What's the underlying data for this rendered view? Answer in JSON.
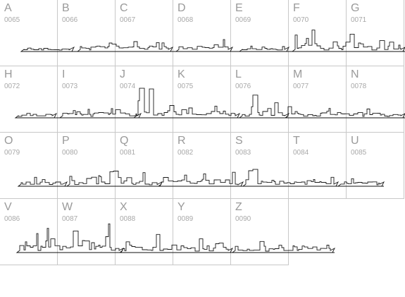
{
  "glyphs": [
    {
      "letter": "A",
      "code": "0065"
    },
    {
      "letter": "B",
      "code": "0066"
    },
    {
      "letter": "C",
      "code": "0067"
    },
    {
      "letter": "D",
      "code": "0068"
    },
    {
      "letter": "E",
      "code": "0069"
    },
    {
      "letter": "F",
      "code": "0070"
    },
    {
      "letter": "G",
      "code": "0071"
    },
    {
      "letter": "H",
      "code": "0072"
    },
    {
      "letter": "I",
      "code": "0073"
    },
    {
      "letter": "J",
      "code": "0074"
    },
    {
      "letter": "K",
      "code": "0075"
    },
    {
      "letter": "L",
      "code": "0076"
    },
    {
      "letter": "M",
      "code": "0077"
    },
    {
      "letter": "N",
      "code": "0078"
    },
    {
      "letter": "O",
      "code": "0079"
    },
    {
      "letter": "P",
      "code": "0080"
    },
    {
      "letter": "Q",
      "code": "0081"
    },
    {
      "letter": "R",
      "code": "0082"
    },
    {
      "letter": "S",
      "code": "0083"
    },
    {
      "letter": "T",
      "code": "0084"
    },
    {
      "letter": "U",
      "code": "0085"
    },
    {
      "letter": "V",
      "code": "0086"
    },
    {
      "letter": "W",
      "code": "0087"
    },
    {
      "letter": "X",
      "code": "0088"
    },
    {
      "letter": "Y",
      "code": "0089"
    },
    {
      "letter": "Z",
      "code": "0090"
    }
  ],
  "colors": {
    "grid_line": "#c8c8c8",
    "letter_text": "#9a9a9a",
    "code_text": "#a8a8a8",
    "glyph_stroke": "#1a1a1a"
  }
}
